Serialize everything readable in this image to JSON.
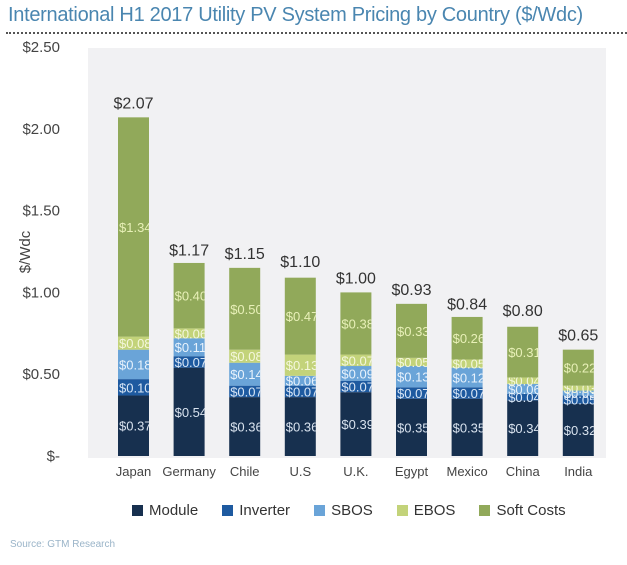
{
  "title": "International H1 2017 Utility PV System Pricing by Country ($/Wdc)",
  "source": "Source: GTM Research",
  "chart_data": {
    "type": "bar",
    "stacked": true,
    "title": "International H1 2017 Utility PV System Pricing by Country ($/Wdc)",
    "xlabel": "",
    "ylabel": "$/Wdc",
    "ylim": [
      0,
      2.5
    ],
    "yticks": [
      0,
      0.5,
      1.0,
      1.5,
      2.0,
      2.5
    ],
    "ytick_labels": [
      "$-",
      "$0.50",
      "$1.00",
      "$1.50",
      "$2.00",
      "$2.50"
    ],
    "grid": false,
    "legend_position": "bottom",
    "categories": [
      "Japan",
      "Germany",
      "Chile",
      "U.S",
      "U.K.",
      "Egypt",
      "Mexico",
      "China",
      "India"
    ],
    "totals": [
      2.07,
      1.17,
      1.15,
      1.1,
      1.0,
      0.93,
      0.84,
      0.8,
      0.65
    ],
    "total_labels": [
      "$2.07",
      "$1.17",
      "$1.15",
      "$1.10",
      "$1.00",
      "$0.93",
      "$0.84",
      "$0.80",
      "$0.65"
    ],
    "series": [
      {
        "name": "Module",
        "color": "#17304f",
        "label_color": "#d8e2ee",
        "values": [
          0.37,
          0.54,
          0.36,
          0.36,
          0.39,
          0.35,
          0.35,
          0.34,
          0.32
        ]
      },
      {
        "name": "Inverter",
        "color": "#1e5aa0",
        "label_color": "#d8e6f6",
        "values": [
          0.1,
          0.07,
          0.07,
          0.07,
          0.07,
          0.07,
          0.07,
          0.04,
          0.05
        ]
      },
      {
        "name": "SBOS",
        "color": "#6aa4d8",
        "label_color": "#e8f2fc",
        "values": [
          0.18,
          0.11,
          0.14,
          0.06,
          0.09,
          0.13,
          0.12,
          0.06,
          0.03
        ]
      },
      {
        "name": "EBOS",
        "color": "#c3d37a",
        "label_color": "#f4f7dc",
        "values": [
          0.08,
          0.06,
          0.08,
          0.13,
          0.07,
          0.05,
          0.05,
          0.04,
          0.03
        ]
      },
      {
        "name": "Soft Costs",
        "color": "#91a95a",
        "label_color": "#e8f0b8",
        "values": [
          1.34,
          0.4,
          0.5,
          0.47,
          0.38,
          0.33,
          0.26,
          0.31,
          0.22
        ]
      }
    ],
    "plot_background": "#f1f1f3"
  }
}
